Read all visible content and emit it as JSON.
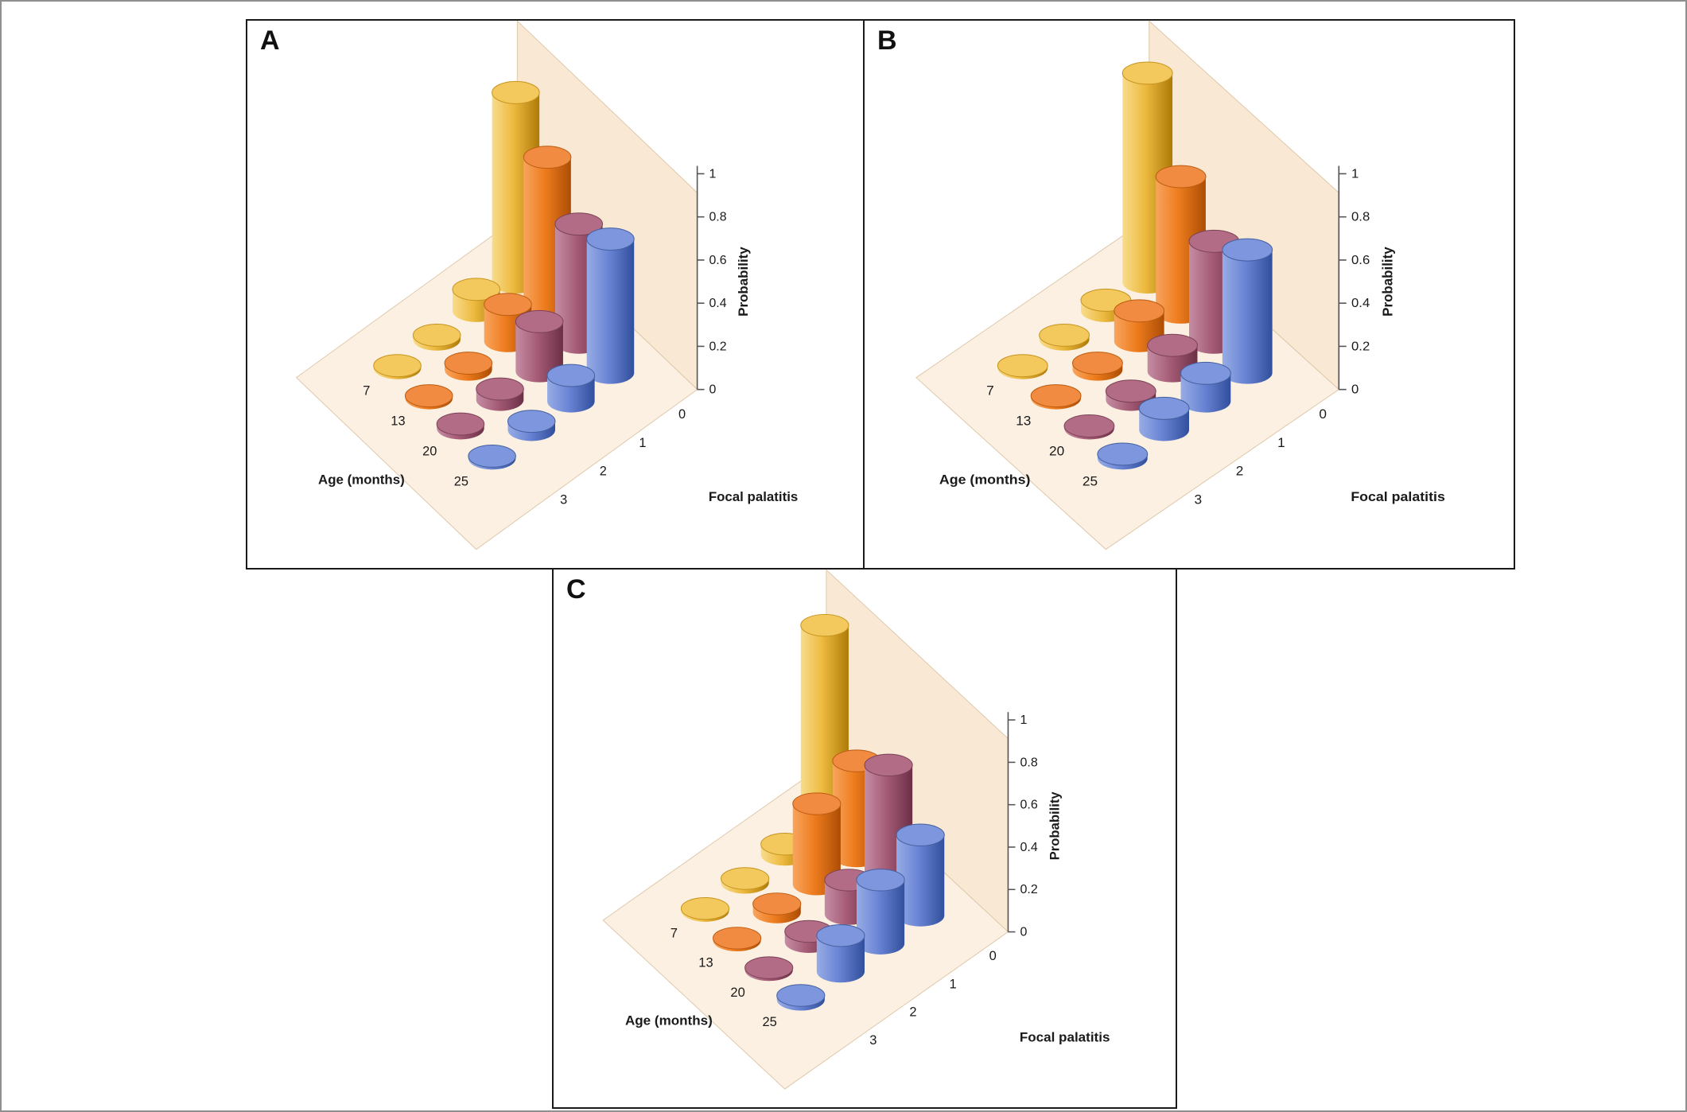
{
  "figure": {
    "background": "#ffffff",
    "outer_border_color": "#8f8f8f",
    "panel_border_color": "#1a1a1a"
  },
  "walls": {
    "back_wall_color": "#F8E8D4",
    "floor_color": "#FBF0E1",
    "edge_color": "#DFC9AC",
    "axis_color": "#555555",
    "text_color": "#1a1a1a"
  },
  "palette": {
    "7": {
      "light": "#F8DC8C",
      "mid": "#EDBA3F",
      "dark": "#AE7A07",
      "top": "#F3C95E",
      "edge": "#C6941F"
    },
    "13": {
      "light": "#F8A45E",
      "mid": "#EE7C1E",
      "dark": "#AC4D04",
      "top": "#F18B41",
      "edge": "#BC5C10"
    },
    "20": {
      "light": "#C48DA3",
      "mid": "#A65C77",
      "dark": "#6B2F46",
      "top": "#B26C86",
      "edge": "#7C4157"
    },
    "25": {
      "light": "#97ACE5",
      "mid": "#6A85D5",
      "dark": "#314F9D",
      "top": "#7E96DD",
      "edge": "#44609E"
    }
  },
  "chart_data": [
    {
      "type": "cylinder3d",
      "panel_label": "A",
      "xlabel": "Focal palatitis",
      "x_categories": [
        "0",
        "1",
        "2",
        "3"
      ],
      "ylabel": "Age (months)",
      "y_categories": [
        "7",
        "13",
        "20",
        "25"
      ],
      "zlabel": "Probability",
      "zlim": [
        0,
        1
      ],
      "z_ticks": [
        "0",
        "0.2",
        "0.4",
        "0.6",
        "0.8",
        "1"
      ],
      "series": [
        {
          "name": "7",
          "values": [
            0.88,
            0.1,
            0.02,
            0.01
          ]
        },
        {
          "name": "13",
          "values": [
            0.72,
            0.17,
            0.03,
            0.01
          ]
        },
        {
          "name": "20",
          "values": [
            0.55,
            0.23,
            0.05,
            0.02
          ]
        },
        {
          "name": "25",
          "values": [
            0.62,
            0.12,
            0.04,
            0.01
          ]
        }
      ]
    },
    {
      "type": "cylinder3d",
      "panel_label": "B",
      "xlabel": "Focal palatitis",
      "x_categories": [
        "0",
        "1",
        "2",
        "3"
      ],
      "ylabel": "Age (months)",
      "y_categories": [
        "7",
        "13",
        "20",
        "25"
      ],
      "zlabel": "Probability",
      "zlim": [
        0,
        1
      ],
      "z_ticks": [
        "0",
        "0.2",
        "0.4",
        "0.6",
        "0.8",
        "1"
      ],
      "series": [
        {
          "name": "7",
          "values": [
            0.97,
            0.05,
            0.02,
            0.01
          ]
        },
        {
          "name": "13",
          "values": [
            0.63,
            0.14,
            0.03,
            0.01
          ]
        },
        {
          "name": "20",
          "values": [
            0.47,
            0.12,
            0.04,
            0.01
          ]
        },
        {
          "name": "25",
          "values": [
            0.57,
            0.13,
            0.1,
            0.02
          ]
        }
      ]
    },
    {
      "type": "cylinder3d",
      "panel_label": "C",
      "xlabel": "Focal palatitis",
      "x_categories": [
        "0",
        "1",
        "2",
        "3"
      ],
      "ylabel": "Age (months)",
      "y_categories": [
        "7",
        "13",
        "20",
        "25"
      ],
      "zlabel": "Probability",
      "zlim": [
        0,
        1
      ],
      "z_ticks": [
        "0",
        "0.2",
        "0.4",
        "0.6",
        "0.8",
        "1"
      ],
      "series": [
        {
          "name": "7",
          "values": [
            0.95,
            0.05,
            0.02,
            0.01
          ]
        },
        {
          "name": "13",
          "values": [
            0.45,
            0.38,
            0.04,
            0.01
          ]
        },
        {
          "name": "20",
          "values": [
            0.57,
            0.16,
            0.05,
            0.01
          ]
        },
        {
          "name": "25",
          "values": [
            0.38,
            0.3,
            0.17,
            0.02
          ]
        }
      ]
    }
  ]
}
